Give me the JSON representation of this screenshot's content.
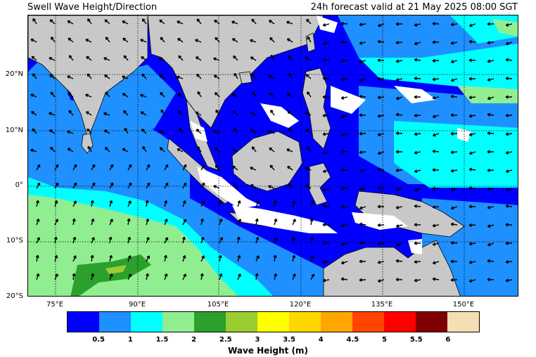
{
  "header": {
    "title": "Swell Wave Height/Direction",
    "valid": "24h forecast valid at 21 May 2025 08:00 SGT"
  },
  "map": {
    "lat_labels": [
      "20°N",
      "10°N",
      "0°",
      "10°S",
      "20°S"
    ],
    "lon_labels": [
      "75°E",
      "90°E",
      "105°E",
      "120°E",
      "135°E",
      "150°E"
    ],
    "land_color": "#c8c8c8",
    "ocean_base": "#1a1aff"
  },
  "colorbar": {
    "title": "Wave Height (m)",
    "ticks": [
      "0.5",
      "1",
      "1.5",
      "2",
      "2.5",
      "3",
      "3.5",
      "4",
      "4.5",
      "5",
      "5.5",
      "6"
    ],
    "colors": [
      "#0000ff",
      "#1e90ff",
      "#00ffff",
      "#90ee90",
      "#2ca02c",
      "#9acd32",
      "#ffff00",
      "#ffd700",
      "#ffa500",
      "#ff4500",
      "#ff0000",
      "#800000",
      "#f5deb3"
    ]
  }
}
